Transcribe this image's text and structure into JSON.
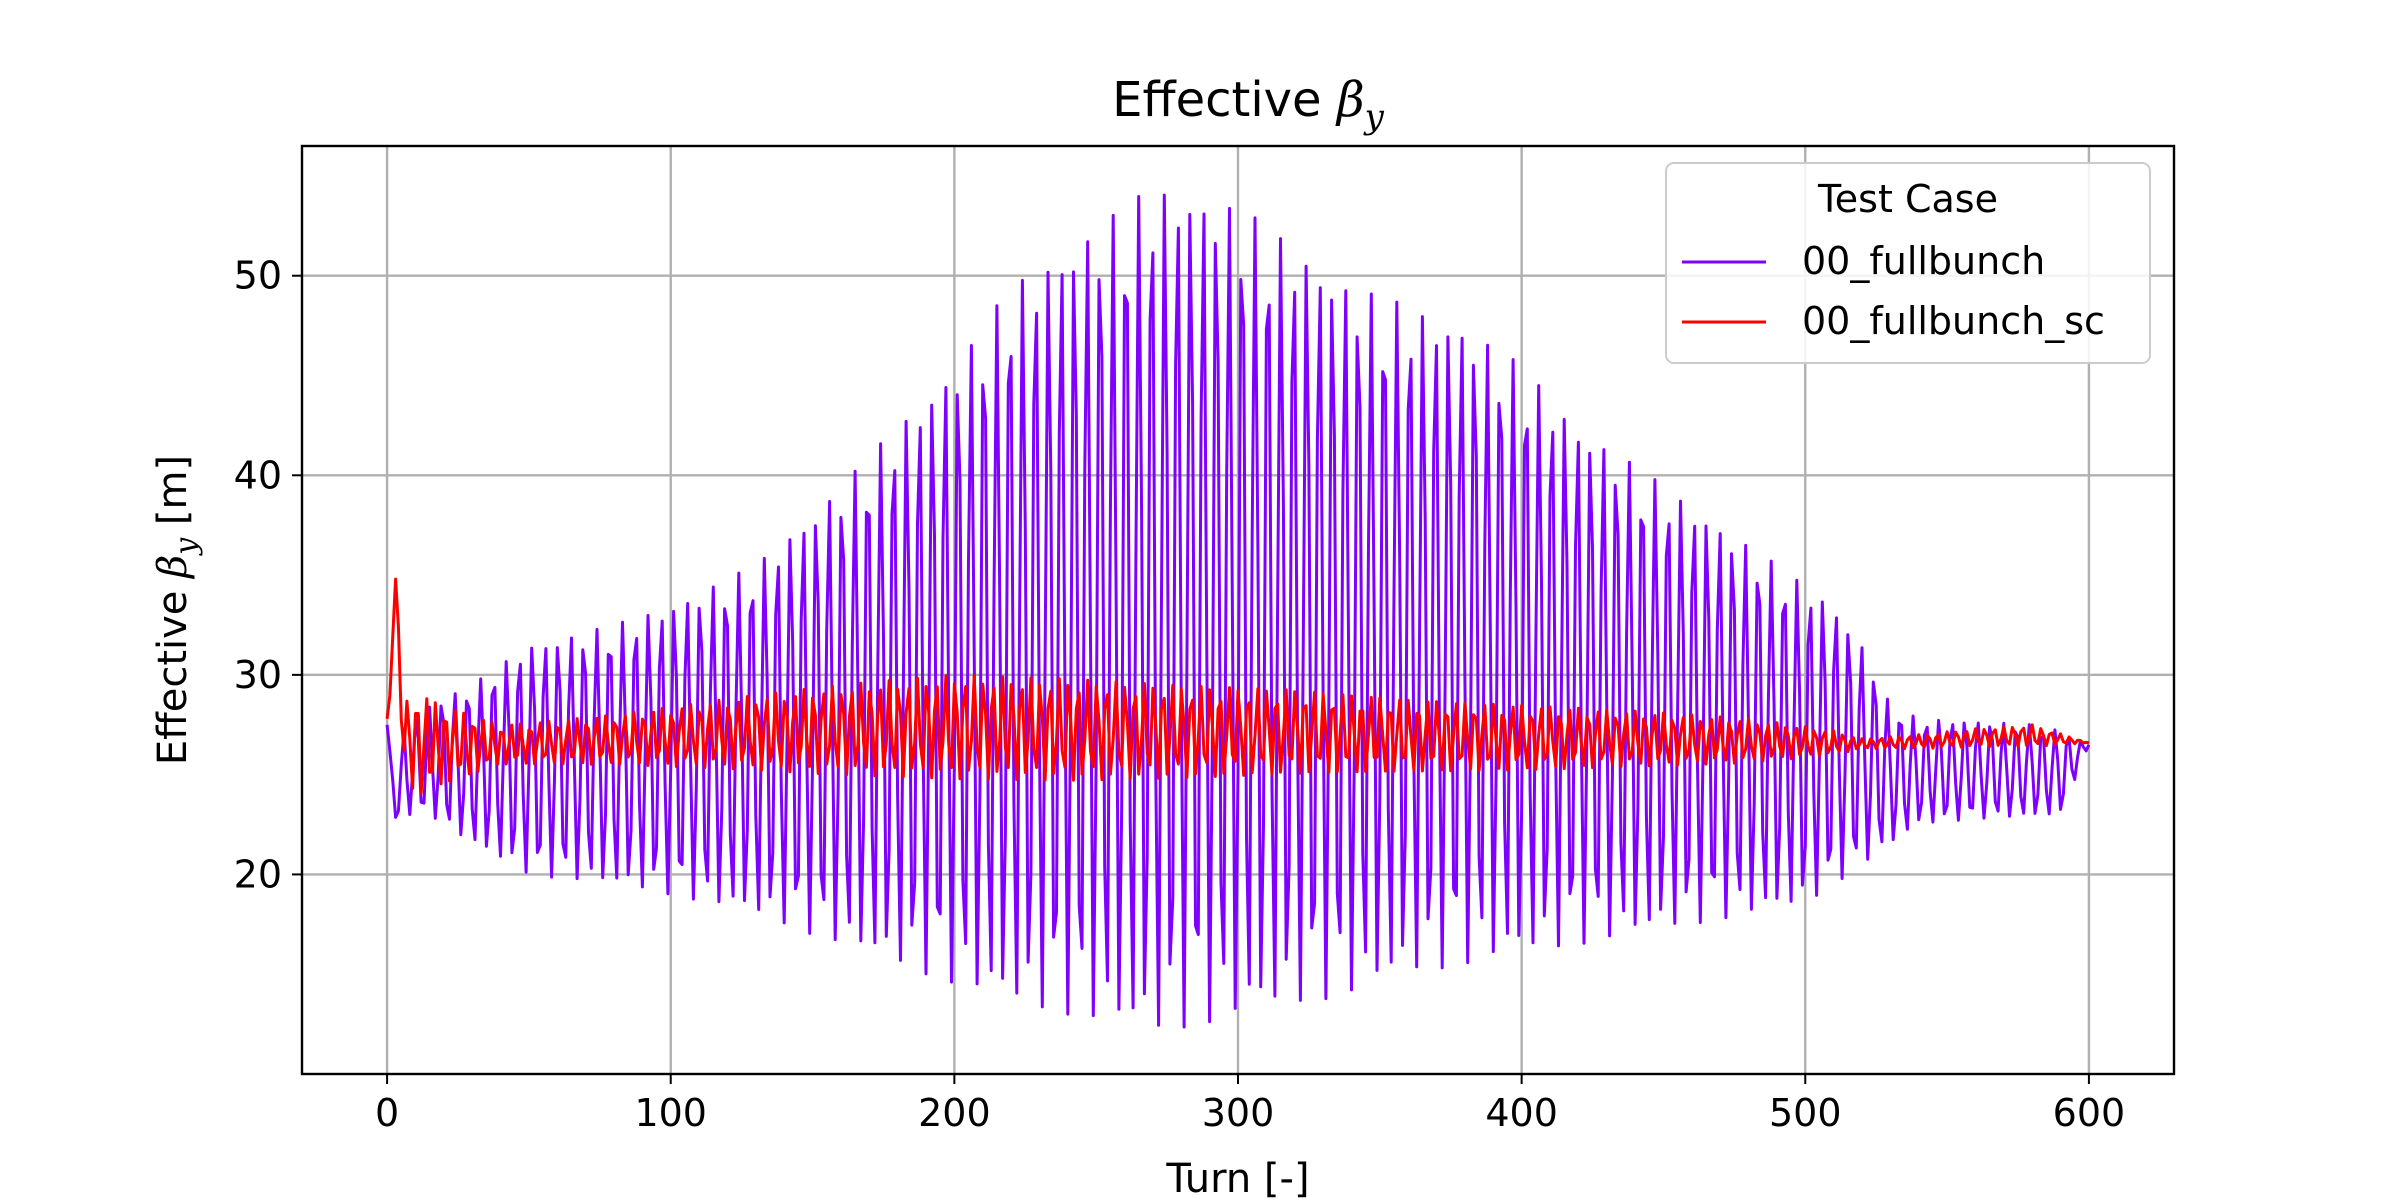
{
  "chart_data": {
    "type": "line",
    "title": "Effective βy",
    "title_parts": {
      "prefix": "Effective ",
      "symbol": "β",
      "subscript": "y"
    },
    "xlabel": "Turn [-]",
    "ylabel": "Effective βy [m]",
    "ylabel_parts": {
      "prefix": "Effective ",
      "symbol": "β",
      "subscript": "y",
      "suffix": " [m]"
    },
    "xlim": [
      -30,
      630
    ],
    "ylim": [
      10,
      56.5
    ],
    "xticks": [
      0,
      100,
      200,
      300,
      400,
      500,
      600
    ],
    "yticks": [
      20,
      30,
      40,
      50
    ],
    "xtick_labels": [
      "0",
      "100",
      "200",
      "300",
      "400",
      "500",
      "600"
    ],
    "ytick_labels": [
      "20",
      "30",
      "40",
      "50"
    ],
    "grid": true,
    "legend": {
      "title": "Test Case",
      "placement": "top-right"
    },
    "series": [
      {
        "name": "00_fullbunch",
        "color": "#7f00ff",
        "start": 27.5,
        "end": 26.5,
        "oscillation_period_turns": 4.55,
        "envelope_turns": [
          0,
          3,
          6,
          15,
          30,
          50,
          80,
          100,
          130,
          160,
          180,
          200,
          220,
          240,
          260,
          270,
          280,
          300,
          320,
          340,
          360,
          380,
          400,
          420,
          440,
          460,
          480,
          500,
          510,
          520,
          530,
          540,
          560,
          580,
          590,
          600
        ],
        "envelope_max": [
          27.5,
          23.5,
          27.5,
          28.5,
          29.5,
          31.5,
          32.5,
          33.5,
          35.5,
          39.5,
          42.5,
          45.5,
          49.5,
          51.5,
          53.5,
          54.5,
          54.3,
          53.5,
          51.5,
          49.5,
          48.5,
          47.5,
          45.5,
          42.5,
          40.5,
          38.5,
          36.5,
          34.5,
          33.5,
          31.5,
          28.5,
          27.8,
          27.7,
          27.5,
          27.2,
          26.5
        ],
        "envelope_min": [
          27.5,
          22.8,
          23.0,
          23.0,
          21.5,
          20.0,
          19.5,
          19.0,
          18.0,
          16.5,
          15.5,
          14.5,
          13.5,
          13.0,
          12.3,
          12.0,
          12.3,
          12.8,
          13.5,
          14.0,
          15.0,
          15.5,
          16.0,
          16.5,
          17.0,
          17.5,
          18.0,
          18.5,
          19.5,
          20.5,
          21.5,
          22.5,
          22.8,
          22.9,
          23.0,
          26.5
        ]
      },
      {
        "name": "00_fullbunch_sc",
        "color": "#ff0000",
        "start": 27.8,
        "end": 26.6,
        "oscillation_period_turns": 3.33,
        "initial_peak": {
          "turn": 3,
          "value": 34.8
        },
        "envelope_turns": [
          0,
          10,
          20,
          40,
          80,
          120,
          160,
          200,
          240,
          280,
          320,
          360,
          400,
          440,
          480,
          510,
          520,
          540,
          560,
          580,
          600
        ],
        "envelope_max": [
          27.8,
          29.2,
          28.5,
          27.5,
          28.0,
          28.8,
          29.5,
          30.0,
          29.8,
          29.5,
          29.3,
          28.8,
          28.5,
          28.2,
          27.8,
          27.2,
          26.8,
          27.0,
          27.3,
          27.5,
          26.6
        ],
        "envelope_min": [
          27.8,
          23.8,
          24.5,
          25.5,
          25.5,
          25.3,
          25.0,
          24.8,
          24.7,
          24.8,
          25.0,
          25.1,
          25.2,
          25.4,
          25.6,
          26.0,
          26.3,
          26.3,
          26.4,
          26.4,
          26.6
        ]
      }
    ]
  }
}
